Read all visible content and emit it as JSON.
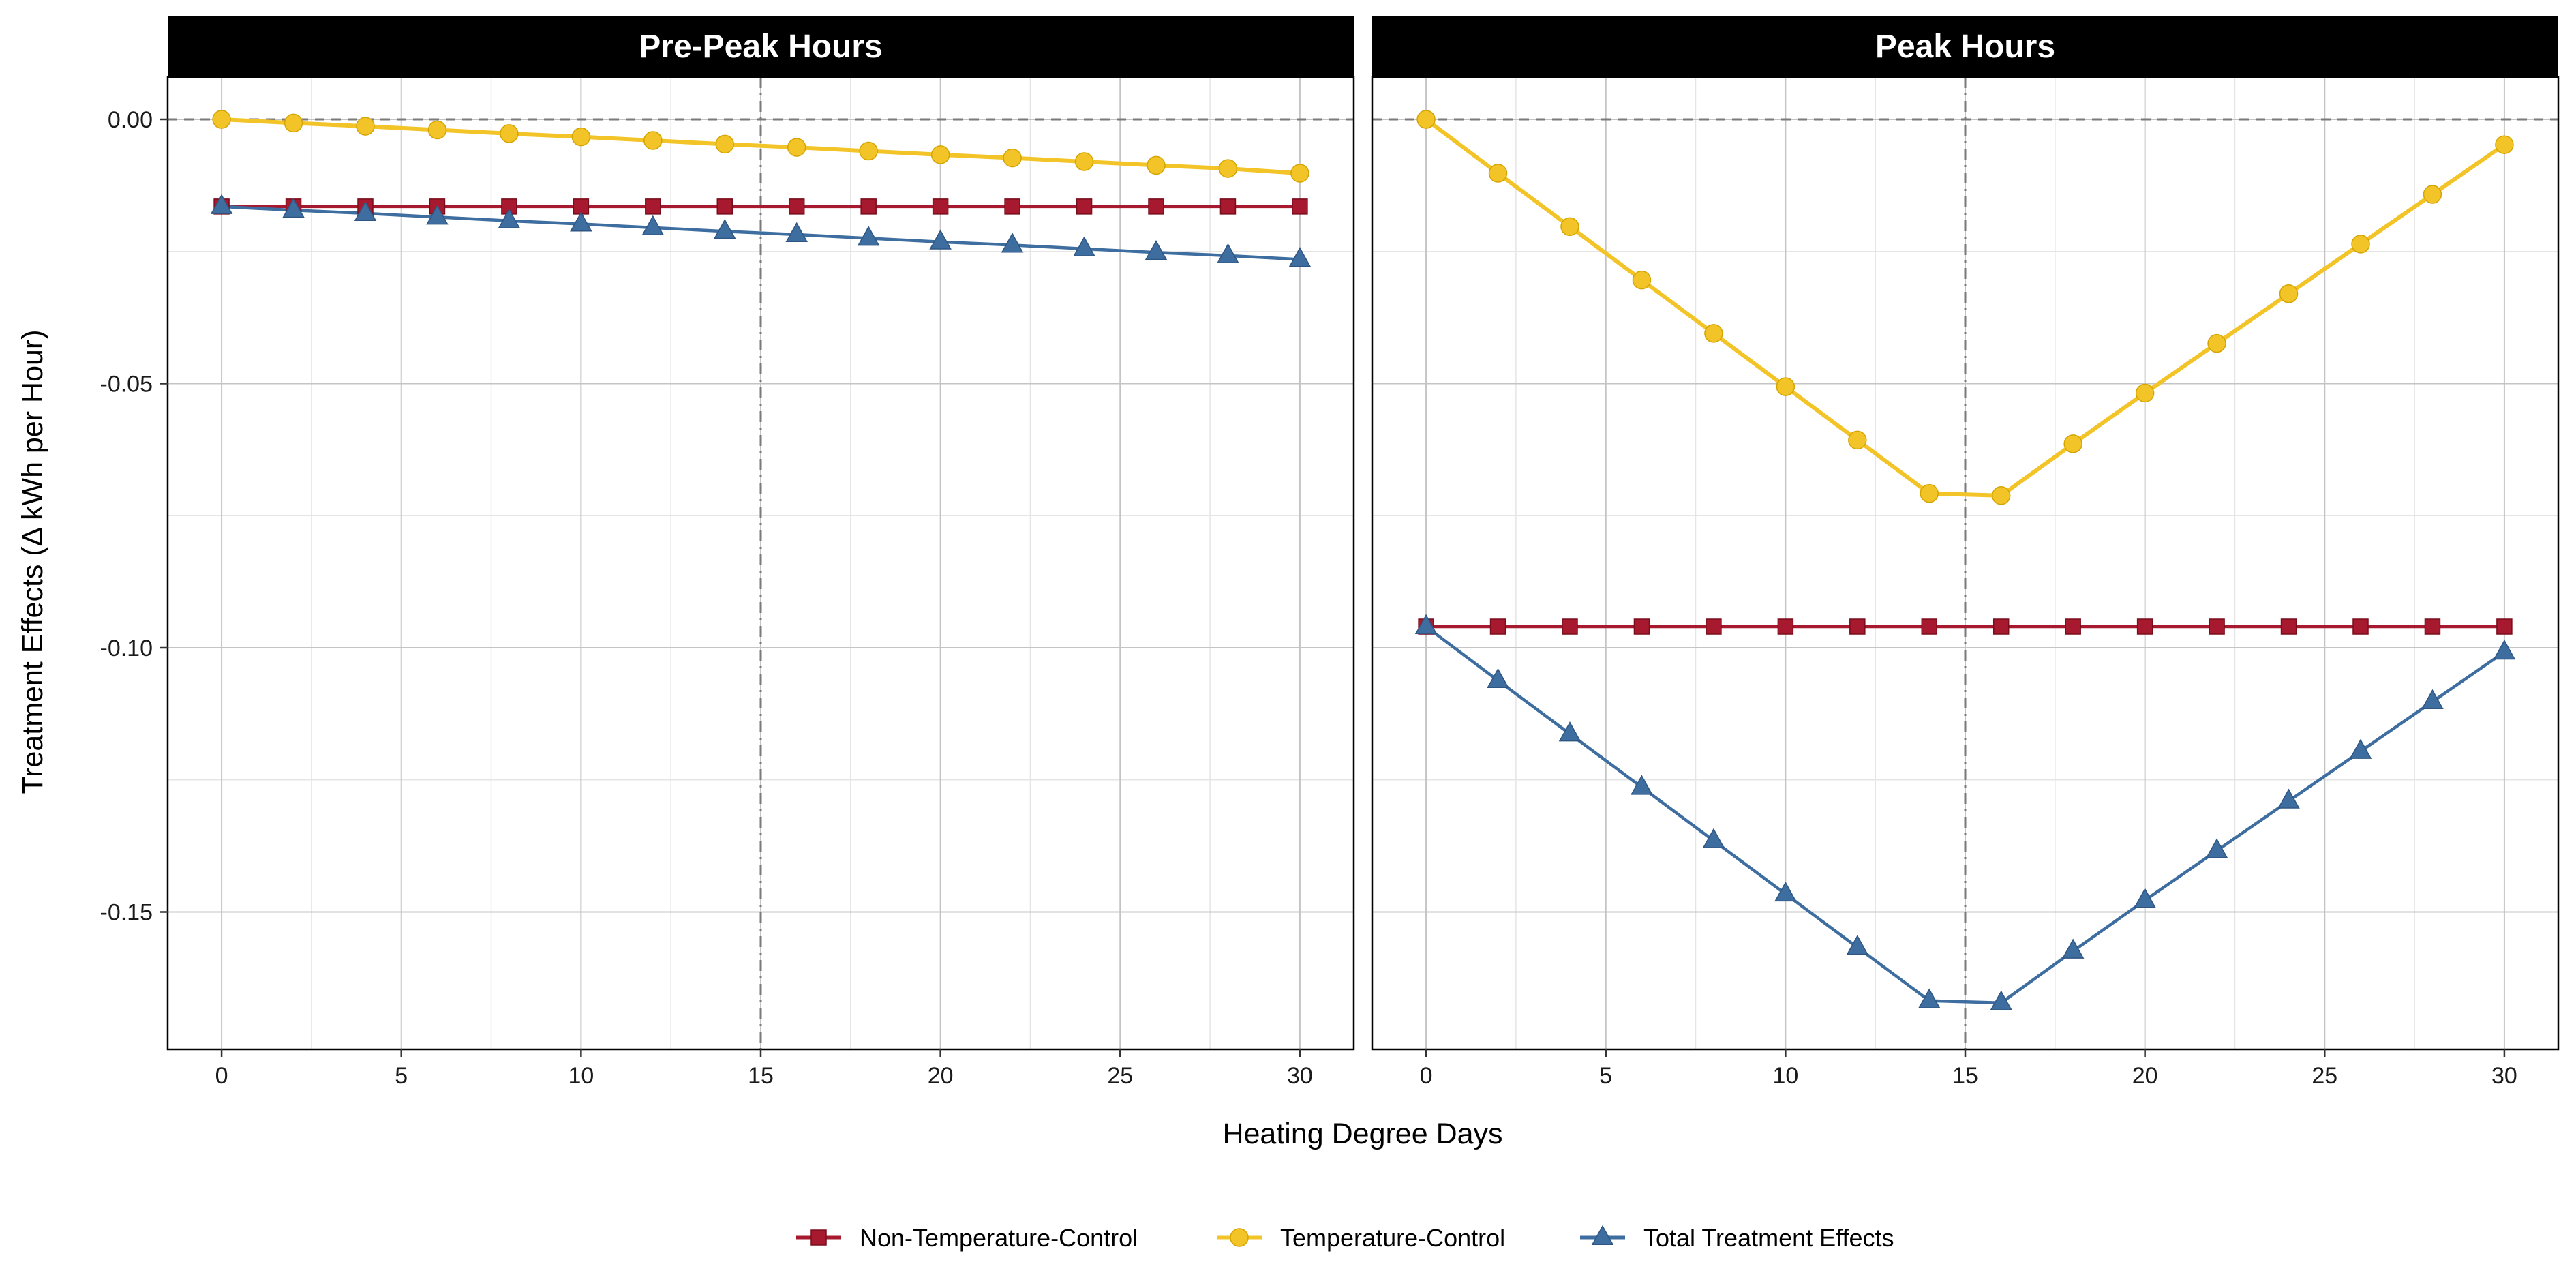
{
  "chart_data": {
    "type": "line",
    "xlabel": "Heating Degree Days",
    "ylabel": "Treatment Effects  (Δ kWh per Hour)",
    "xlim": [
      -1.5,
      31.5
    ],
    "ylim": [
      -0.176,
      0.008
    ],
    "x_ticks": [
      0,
      5,
      10,
      15,
      20,
      25,
      30
    ],
    "y_ticks": [
      0.0,
      -0.05,
      -0.1,
      -0.15
    ],
    "y_tick_labels": [
      "0.00",
      "-0.05",
      "-0.10",
      "-0.15"
    ],
    "grid": true,
    "reference_lines": {
      "horizontal": 0,
      "vertical": 15
    },
    "legend_position": "bottom",
    "legend": [
      {
        "name": "Non-Temperature-Control",
        "color": "#a6192e",
        "marker": "square"
      },
      {
        "name": "Temperature-Control",
        "color": "#f2c428",
        "marker": "circle"
      },
      {
        "name": "Total Treatment Effects",
        "color": "#3e6da0",
        "marker": "triangle"
      }
    ],
    "x": [
      0,
      2,
      4,
      6,
      8,
      10,
      12,
      14,
      16,
      18,
      20,
      22,
      24,
      26,
      28,
      30
    ],
    "panels": [
      {
        "title": "Pre-Peak Hours",
        "series": [
          {
            "name": "Non-Temperature-Control",
            "values": [
              -0.0165,
              -0.0165,
              -0.0165,
              -0.0165,
              -0.0165,
              -0.0165,
              -0.0165,
              -0.0165,
              -0.0165,
              -0.0165,
              -0.0165,
              -0.0165,
              -0.0165,
              -0.0165,
              -0.0165,
              -0.0165
            ]
          },
          {
            "name": "Temperature-Control",
            "values": [
              0.0,
              -0.0007,
              -0.0013,
              -0.002,
              -0.0027,
              -0.0033,
              -0.004,
              -0.0047,
              -0.0053,
              -0.006,
              -0.0067,
              -0.0073,
              -0.008,
              -0.0087,
              -0.0093,
              -0.0102
            ]
          },
          {
            "name": "Total Treatment Effects",
            "values": [
              -0.0165,
              -0.0172,
              -0.0178,
              -0.0185,
              -0.0192,
              -0.0198,
              -0.0205,
              -0.0212,
              -0.0218,
              -0.0225,
              -0.0232,
              -0.0238,
              -0.0245,
              -0.0252,
              -0.0258,
              -0.0265
            ]
          }
        ]
      },
      {
        "title": "Peak Hours",
        "series": [
          {
            "name": "Non-Temperature-Control",
            "values": [
              -0.096,
              -0.096,
              -0.096,
              -0.096,
              -0.096,
              -0.096,
              -0.096,
              -0.096,
              -0.096,
              -0.096,
              -0.096,
              -0.096,
              -0.096,
              -0.096,
              -0.096,
              -0.096
            ]
          },
          {
            "name": "Temperature-Control",
            "values": [
              0.0,
              -0.0102,
              -0.0203,
              -0.0304,
              -0.0405,
              -0.0506,
              -0.0607,
              -0.0708,
              -0.0712,
              -0.0614,
              -0.0518,
              -0.0424,
              -0.033,
              -0.0236,
              -0.0142,
              -0.0048
            ]
          },
          {
            "name": "Total Treatment Effects",
            "values": [
              -0.096,
              -0.1062,
              -0.1163,
              -0.1264,
              -0.1365,
              -0.1466,
              -0.1567,
              -0.1668,
              -0.1672,
              -0.1574,
              -0.1478,
              -0.1384,
              -0.129,
              -0.1196,
              -0.1102,
              -0.1008
            ]
          }
        ]
      }
    ]
  }
}
